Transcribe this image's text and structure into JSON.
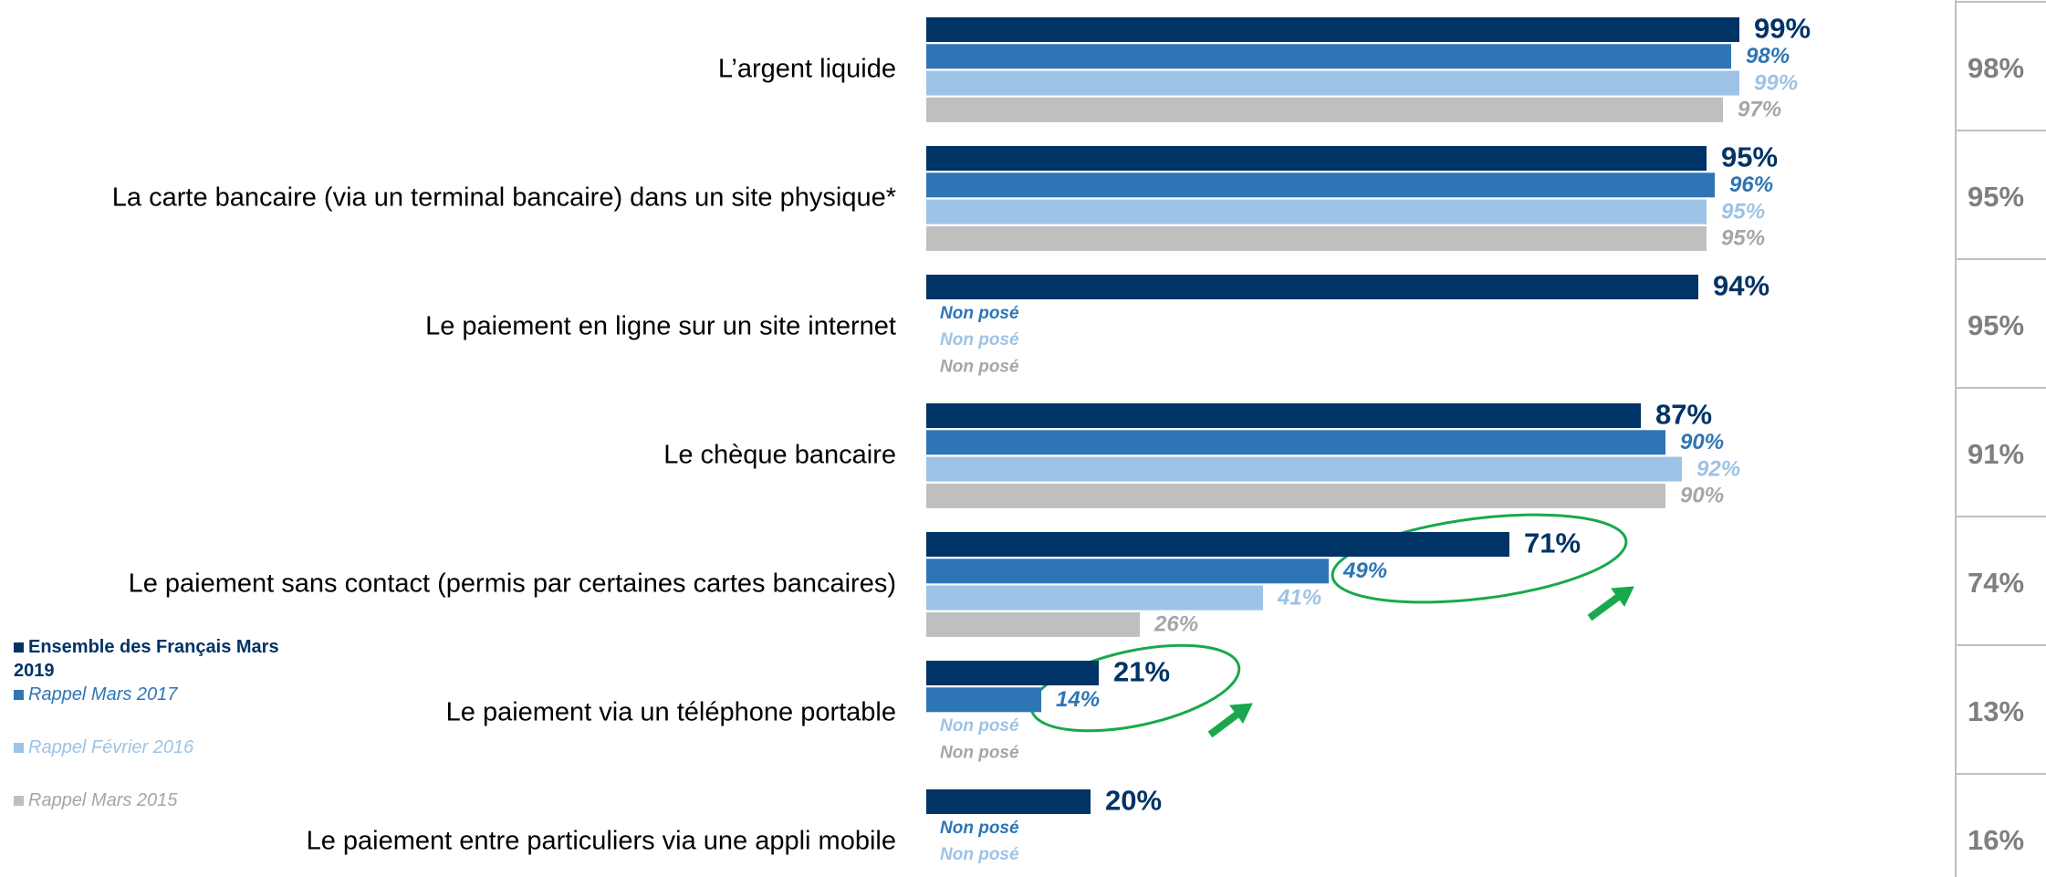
{
  "chart_data": {
    "type": "bar",
    "orientation": "horizontal",
    "categories": [
      "L’argent liquide",
      "La carte bancaire (via un terminal bancaire)  dans un site physique*",
      "Le paiement en ligne sur un site internet",
      "Le chèque bancaire",
      "Le paiement sans contact (permis par certaines cartes bancaires)",
      "Le paiement via un téléphone portable",
      "Le paiement entre particuliers via une appli mobile"
    ],
    "xlim": [
      0,
      100
    ],
    "series": [
      {
        "name": "Ensemble des Français Mars 2019",
        "color": "#003366",
        "values": [
          99,
          95,
          94,
          87,
          71,
          21,
          20
        ],
        "value_labels": [
          "99%",
          "95%",
          "94%",
          "87%",
          "71%",
          "21%",
          "20%"
        ]
      },
      {
        "name": "Rappel Mars 2017",
        "color": "#2e75b6",
        "values": [
          98,
          96,
          null,
          90,
          49,
          14,
          null
        ],
        "value_labels": [
          "98%",
          "96%",
          "Non posé",
          "90%",
          "49%",
          "14%",
          "Non posé"
        ]
      },
      {
        "name": "Rappel Février 2016",
        "color": "#9dc3e6",
        "values": [
          99,
          95,
          null,
          92,
          41,
          null,
          null
        ],
        "value_labels": [
          "99%",
          "95%",
          "Non posé",
          "92%",
          "41%",
          "Non posé",
          "Non posé"
        ]
      },
      {
        "name": "Rappel Mars 2015",
        "color": "#bfbfbf",
        "values": [
          97,
          95,
          null,
          90,
          26,
          null,
          null
        ],
        "value_labels": [
          "97%",
          "95%",
          "Non posé",
          "90%",
          "26%",
          "Non posé",
          null
        ]
      }
    ],
    "side_column": {
      "values": [
        98,
        95,
        95,
        91,
        74,
        13,
        16
      ],
      "value_labels": [
        "98%",
        "95%",
        "95%",
        "91%",
        "74%",
        "13%",
        "16%"
      ]
    }
  }
}
